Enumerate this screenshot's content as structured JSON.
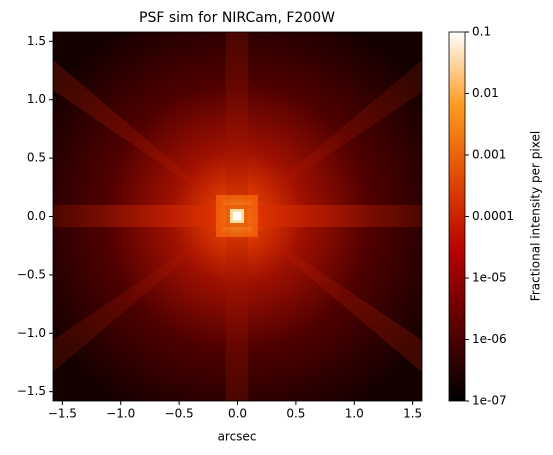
{
  "chart_data": {
    "type": "image",
    "title": "PSF sim for NIRCam, F200W",
    "x_label": "arcsec",
    "xlim": [
      -1.58,
      1.58
    ],
    "xticks": [
      {
        "value": -1.5,
        "label": "−1.5"
      },
      {
        "value": -1.0,
        "label": "−1.0"
      },
      {
        "value": -0.5,
        "label": "−0.5"
      },
      {
        "value": 0,
        "label": "0.0"
      },
      {
        "value": 0.5,
        "label": "0.5"
      },
      {
        "value": 1.0,
        "label": "1.0"
      },
      {
        "value": 1.5,
        "label": "1.5"
      }
    ],
    "ylim": [
      -1.58,
      1.58
    ],
    "yticks": [
      {
        "value": -1.5,
        "label": "−1.5"
      },
      {
        "value": -1.0,
        "label": "−1.0"
      },
      {
        "value": -0.5,
        "label": "−0.5"
      },
      {
        "value": 0,
        "label": "0.0"
      },
      {
        "value": 0.5,
        "label": "0.5"
      },
      {
        "value": 1.0,
        "label": "1.0"
      },
      {
        "value": 1.5,
        "label": "1.5"
      }
    ],
    "colorbar": {
      "label": "Fractional intensity per pixel",
      "scale": "log",
      "lim": [
        1e-07,
        0.1
      ],
      "ticks": [
        {
          "value": 1e-07,
          "label": "1e-07"
        },
        {
          "value": 1e-06,
          "label": "1e-06"
        },
        {
          "value": 1e-05,
          "label": "1e-05"
        },
        0.0001,
        0.001,
        0.01,
        0.1
      ],
      "colormap": [
        "#000000",
        "#5a0000",
        "#b40000",
        "#e04800",
        "#ff9a20",
        "#ffffff"
      ]
    }
  }
}
